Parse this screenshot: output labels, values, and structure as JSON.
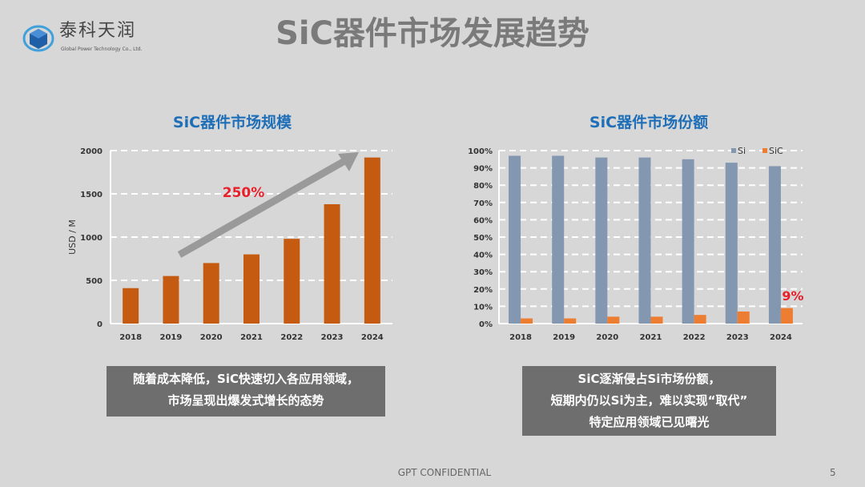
{
  "logo": {
    "name_cn": "泰科天润",
    "name_en": "Global Power Technology Co., Ltd."
  },
  "title": "SiC器件市场发展趋势",
  "colors": {
    "orange_bar": "#c55a11",
    "si_bar": "#8497b0",
    "sic_bar": "#ed7d31",
    "highlight": "#e8202a",
    "title_blue": "#1f6fb8"
  },
  "chart_data": [
    {
      "type": "bar",
      "title": "SiC器件市场规模",
      "ylabel": "USD / M",
      "xlabel": "",
      "categories": [
        "2018",
        "2019",
        "2020",
        "2021",
        "2022",
        "2023",
        "2024"
      ],
      "values": [
        410,
        550,
        700,
        800,
        980,
        1380,
        1920
      ],
      "ylim": [
        0,
        2000
      ],
      "yticks": [
        "0",
        "500",
        "1000",
        "1500",
        "2000"
      ],
      "grid": true,
      "annotation": "250%"
    },
    {
      "type": "bar",
      "title": "SiC器件市场份额",
      "ylabel": "",
      "xlabel": "",
      "categories": [
        "2018",
        "2019",
        "2020",
        "2021",
        "2022",
        "2023",
        "2024"
      ],
      "series": [
        {
          "name": "Si",
          "values": [
            97,
            97,
            96,
            96,
            95,
            93,
            91
          ]
        },
        {
          "name": "SiC",
          "values": [
            3,
            3,
            4,
            4,
            5,
            7,
            9
          ]
        }
      ],
      "ylim": [
        0,
        100
      ],
      "yticks": [
        "0%",
        "10%",
        "20%",
        "30%",
        "40%",
        "50%",
        "60%",
        "70%",
        "80%",
        "90%",
        "100%"
      ],
      "grid": true,
      "legend": "top-right",
      "annotation": "9%"
    }
  ],
  "left_box": [
    "随着成本降低，SiC快速切入各应用领域，",
    "市场呈现出爆发式增长的态势"
  ],
  "right_box": [
    "SiC逐渐侵占Si市场份额，",
    "短期内仍以Si为主，难以实现“取代”",
    "特定应用领域已见曙光"
  ],
  "footer": "GPT CONFIDENTIAL",
  "page_number": "5"
}
